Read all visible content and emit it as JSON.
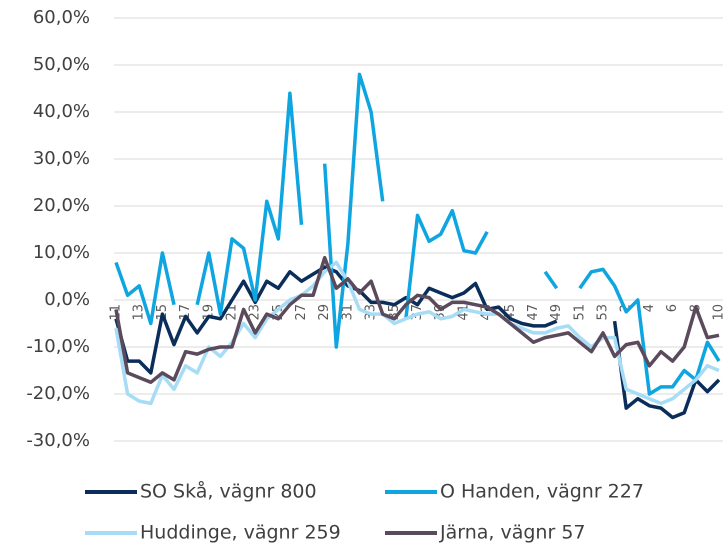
{
  "chart_data": {
    "type": "line",
    "categories": [
      "11",
      null,
      "13",
      null,
      "15",
      null,
      "17",
      null,
      "19",
      null,
      "21",
      null,
      "23",
      null,
      "25",
      null,
      "27",
      null,
      "29",
      null,
      "31",
      null,
      "33",
      null,
      "35",
      null,
      "37",
      null,
      "39",
      null,
      "41",
      null,
      "43",
      null,
      "45",
      null,
      "47",
      null,
      "49",
      null,
      "51",
      null,
      "53",
      null,
      "2",
      null,
      "4",
      null,
      "6",
      null,
      "8",
      null,
      "10"
    ],
    "series": [
      {
        "name": "SO Skå, vägnr 800",
        "color": "#0b2d5a",
        "values": [
          -4,
          -13,
          -13,
          -15.5,
          -3,
          -9.5,
          -3.5,
          -7,
          -3.5,
          -4,
          0,
          4,
          -0.5,
          4,
          2.5,
          6,
          4,
          5.5,
          7,
          6,
          3,
          2,
          -0.5,
          -0.5,
          -1,
          0.5,
          -1,
          2.5,
          1.5,
          0.5,
          1.5,
          3.5,
          -2,
          -1.5,
          -4,
          -5,
          -5.5,
          -5.5,
          -4.5,
          null,
          null,
          null,
          null,
          -4.5,
          -23,
          -21,
          -22.5,
          -23,
          -25,
          -24,
          -17,
          -19.5,
          -17
        ]
      },
      {
        "name": "O Handen, vägnr 227",
        "color": "#0ea5e0",
        "values": [
          8,
          1,
          3,
          -5,
          10,
          -1,
          null,
          -1,
          10,
          -3,
          13,
          11,
          0,
          21,
          13,
          44,
          16,
          null,
          29,
          -10,
          12,
          48,
          40,
          21,
          null,
          -4,
          18,
          12.5,
          14,
          19,
          10.5,
          10,
          14.5,
          null,
          null,
          null,
          null,
          6,
          2.5,
          null,
          2.5,
          6,
          6.5,
          3,
          -2.5,
          0,
          -20,
          -18.5,
          -18.5,
          -15,
          -17,
          -9,
          -13
        ]
      },
      {
        "name": "Huddinge, vägnr 259",
        "color": "#a6dcf5",
        "values": [
          -6,
          -20,
          -21.5,
          -22,
          -16,
          -19,
          -14,
          -15.5,
          -10,
          -12,
          -9,
          -5,
          -8,
          -4,
          -2,
          0,
          1,
          3,
          6,
          8,
          4,
          -2,
          -3,
          -3,
          -5,
          -4,
          -3,
          -2.5,
          -4,
          -3.5,
          -2,
          -2.5,
          -3,
          -3,
          -5,
          -6,
          -7,
          -7,
          -6,
          -5.5,
          -8,
          -10,
          -8,
          -8,
          -19,
          -20,
          -21,
          -22,
          -21,
          -19,
          -17,
          -14,
          -15
        ]
      },
      {
        "name": "Järna, vägnr 57",
        "color": "#5b4a5b",
        "values": [
          -2,
          -15.5,
          -16.5,
          -17.5,
          -15.5,
          -17,
          -11,
          -11.5,
          -10.5,
          -10,
          -10,
          -2,
          -7,
          -3,
          -4,
          -1,
          1,
          1,
          9,
          2.5,
          4.5,
          1.5,
          4,
          -3,
          -4,
          -1,
          1,
          0.5,
          -2,
          -0.5,
          -0.5,
          -1,
          -1.5,
          -3,
          -5,
          -7,
          -9,
          -8,
          -7.5,
          -7,
          -9,
          -11,
          -7,
          -12,
          -9.5,
          -9,
          -14,
          -11,
          -13,
          -10,
          -1.5,
          -8,
          -7.5
        ]
      }
    ],
    "ylim": [
      -30,
      60
    ],
    "yticks": [
      {
        "value": -30,
        "label": "-30,0%"
      },
      {
        "value": -20,
        "label": "-20,0%"
      },
      {
        "value": -10,
        "label": "-10,0%"
      },
      {
        "value": 0,
        "label": "0,0%"
      },
      {
        "value": 10,
        "label": "10,0%"
      },
      {
        "value": 20,
        "label": "20,0%"
      },
      {
        "value": 30,
        "label": "30,0%"
      },
      {
        "value": 40,
        "label": "40,0%"
      },
      {
        "value": 50,
        "label": "50,0%"
      },
      {
        "value": 60,
        "label": "60,0%"
      }
    ],
    "grid": true
  }
}
